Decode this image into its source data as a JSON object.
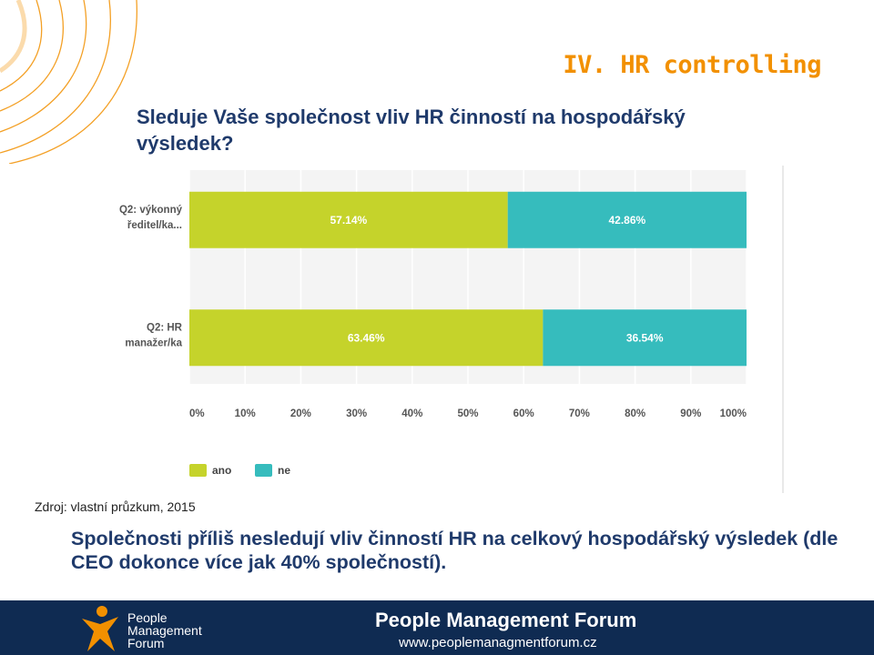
{
  "header": {
    "section_title": "IV. HR controlling",
    "question": "Sleduje Vaše společnost vliv HR činností na hospodářský výsledek?"
  },
  "chart_data": {
    "type": "bar",
    "orientation": "horizontal",
    "stacked": true,
    "categories": [
      [
        "Q2: výkonný",
        "ředitel/ka..."
      ],
      [
        "Q2: HR",
        "manažer/ka"
      ]
    ],
    "series": [
      {
        "name": "ano",
        "color": "#c5d32b",
        "values": [
          57.14,
          63.46
        ],
        "labels": [
          "57.14%",
          "63.46%"
        ]
      },
      {
        "name": "ne",
        "color": "#36bcbd",
        "values": [
          42.86,
          36.54
        ],
        "labels": [
          "42.86%",
          "36.54%"
        ]
      }
    ],
    "xlim": [
      0,
      100
    ],
    "xticks": [
      "0%",
      "10%",
      "20%",
      "30%",
      "40%",
      "50%",
      "60%",
      "70%",
      "80%",
      "90%",
      "100%"
    ],
    "legend_placement": "bottom-left",
    "grid": true
  },
  "source_note": "Zdroj: vlastní průzkum, 2015",
  "conclusion": "Společnosti příliš nesledují vliv činností HR na celkový hospodářský výsledek (dle CEO dokonce více jak 40% společností).",
  "footer": {
    "logo_lines": [
      "People",
      "Management",
      "Forum"
    ],
    "title": "People Management Forum",
    "url": "www.peoplemanagmentforum.cz"
  },
  "colors": {
    "accent": "#f29000",
    "title_blue": "#1f3a6b",
    "footer_bg": "#0f2b52"
  }
}
